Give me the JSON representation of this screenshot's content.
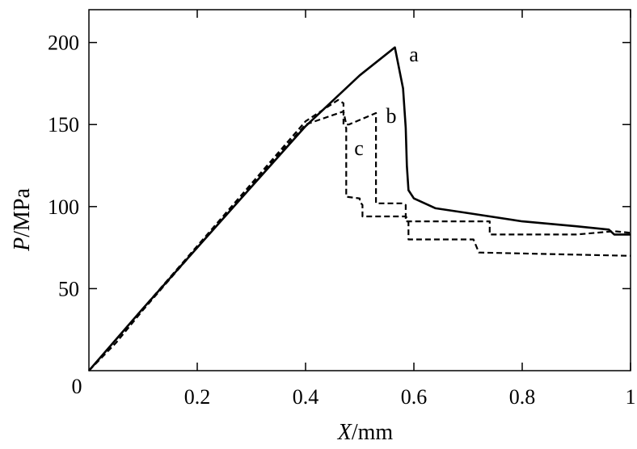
{
  "chart_data": {
    "type": "line",
    "title": "",
    "xlabel": {
      "italic": "X",
      "unit": "/mm"
    },
    "ylabel": {
      "italic": "P",
      "unit": "/MPa"
    },
    "xlim": [
      0,
      1
    ],
    "ylim": [
      0,
      220
    ],
    "xticks": [
      0.2,
      0.4,
      0.6,
      0.8,
      1
    ],
    "xtick_labels": [
      "0.2",
      "0.4",
      "0.6",
      "0.8",
      "1"
    ],
    "yticks": [
      50,
      100,
      150,
      200
    ],
    "ytick_labels": [
      "50",
      "100",
      "150",
      "200"
    ],
    "origin_label": "0",
    "grid": false,
    "series": [
      {
        "label": "a",
        "style": "solid",
        "x": [
          0,
          0.05,
          0.1,
          0.2,
          0.3,
          0.4,
          0.5,
          0.565,
          0.58,
          0.585,
          0.587,
          0.59,
          0.6,
          0.64,
          0.7,
          0.8,
          0.9,
          0.96,
          0.97,
          1.0
        ],
        "y": [
          0,
          19,
          38,
          75,
          112,
          149,
          180,
          197,
          172,
          148,
          125,
          110,
          105,
          99,
          96,
          91,
          88,
          86,
          83,
          83
        ]
      },
      {
        "label": "b",
        "style": "dashed",
        "x": [
          0,
          0.05,
          0.1,
          0.2,
          0.3,
          0.4,
          0.47,
          0.475,
          0.48,
          0.53,
          0.53,
          0.58,
          0.585,
          0.585,
          0.74,
          0.74,
          0.9,
          0.97,
          1.0
        ],
        "y": [
          0,
          17,
          37,
          75,
          113,
          150,
          158,
          150,
          150,
          157,
          102,
          102,
          101,
          91,
          91,
          83,
          83,
          85,
          84
        ]
      },
      {
        "label": "c",
        "style": "dashed",
        "x": [
          0,
          0.05,
          0.1,
          0.2,
          0.3,
          0.4,
          0.46,
          0.47,
          0.47,
          0.475,
          0.475,
          0.5,
          0.5,
          0.505,
          0.505,
          0.585,
          0.59,
          0.59,
          0.71,
          0.72,
          1.0
        ],
        "y": [
          0,
          19,
          38,
          76,
          114,
          152,
          165,
          163,
          150,
          148,
          106,
          105,
          103,
          101,
          94,
          94,
          92,
          80,
          80,
          72,
          70
        ]
      }
    ]
  }
}
